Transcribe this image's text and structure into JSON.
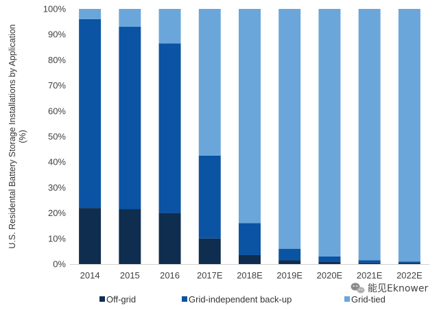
{
  "chart_data": {
    "type": "bar",
    "stacked": true,
    "categories": [
      "2014",
      "2015",
      "2016",
      "2017E",
      "2018E",
      "2019E",
      "2020E",
      "2021E",
      "2022E"
    ],
    "series": [
      {
        "name": "Off-grid",
        "color": "#0f2d4f",
        "values": [
          22,
          21.5,
          20,
          10,
          3.5,
          1.5,
          1,
          0.5,
          0.5
        ]
      },
      {
        "name": "Grid-independent back-up",
        "color": "#0b53a3",
        "values": [
          74,
          71.5,
          66.5,
          32.5,
          12.5,
          4.5,
          2,
          1,
          0.5
        ]
      },
      {
        "name": "Grid-tied",
        "color": "#6aa6da",
        "values": [
          4,
          7,
          13.5,
          57.5,
          84,
          94,
          97,
          98.5,
          99
        ]
      }
    ],
    "ylabel": "U.S. Residental Battery Storage Installations by Application (%)",
    "ylabel_lines": [
      "U.S. Residental Battery Storage Installations by Application",
      "(%)"
    ],
    "ylim": [
      0,
      100
    ],
    "yticks": [
      "0%",
      "10%",
      "20%",
      "30%",
      "40%",
      "50%",
      "60%",
      "70%",
      "80%",
      "90%",
      "100%"
    ],
    "grid": false,
    "legend_position": "bottom"
  },
  "watermark": {
    "icon": "wechat-icon",
    "text": "能见Eknower"
  }
}
